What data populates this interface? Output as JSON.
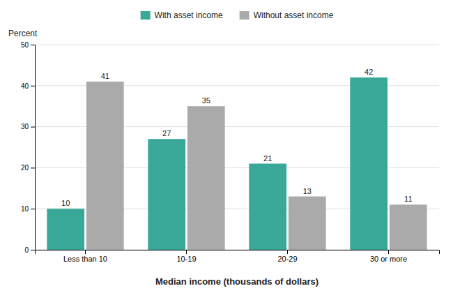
{
  "chart_data": {
    "type": "bar",
    "categories": [
      "Less than 10",
      "10-19",
      "20-29",
      "30 or more"
    ],
    "series": [
      {
        "name": "With asset income",
        "color": "#3aA899",
        "values": [
          10,
          27,
          21,
          42
        ]
      },
      {
        "name": "Without asset income",
        "color": "#AAAAAA",
        "values": [
          41,
          35,
          13,
          11
        ]
      }
    ],
    "y_label": "Percent",
    "x_label": "Median income (thousands of dollars)",
    "ylim": [
      0,
      50
    ],
    "yticks": [
      0,
      10,
      20,
      30,
      40,
      50
    ],
    "grid": true,
    "legend": "top",
    "data_labels": true
  }
}
